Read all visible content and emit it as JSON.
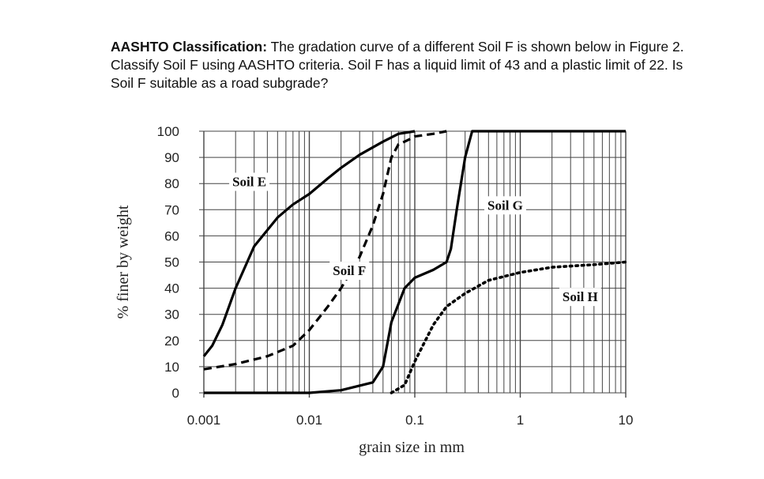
{
  "question": {
    "title": "AASHTO Classification:",
    "body": " The gradation curve of a different Soil F is shown below in Figure 2. Classify Soil F using AASHTO criteria. Soil F has a liquid limit of 43 and a plastic limit of 22. Is Soil F suitable as a road subgrade?"
  },
  "chart_data": {
    "type": "line",
    "x_scale": "log",
    "xlim": [
      0.001,
      10
    ],
    "ylim": [
      0,
      100
    ],
    "xlabel": "grain size in mm",
    "ylabel": "% finer by weight",
    "x_ticks": [
      0.001,
      0.01,
      0.1,
      1,
      10
    ],
    "x_tick_labels": [
      "0.001",
      "0.01",
      "0.1",
      "1",
      "10"
    ],
    "y_ticks": [
      0,
      10,
      20,
      30,
      40,
      50,
      60,
      70,
      80,
      90,
      100
    ],
    "y_tick_labels": [
      "0",
      "10",
      "20",
      "30",
      "40",
      "50",
      "60",
      "70",
      "80",
      "90",
      "100"
    ],
    "grid": true,
    "series": [
      {
        "name": "Soil E",
        "style": "solid",
        "x": [
          0.001,
          0.0012,
          0.0015,
          0.002,
          0.003,
          0.005,
          0.007,
          0.01,
          0.015,
          0.02,
          0.03,
          0.05,
          0.07,
          0.1
        ],
        "y": [
          14,
          18,
          26,
          40,
          56,
          67,
          72,
          76,
          82,
          86,
          91,
          96,
          99,
          100
        ]
      },
      {
        "name": "Soil F",
        "style": "dashed",
        "x": [
          0.001,
          0.002,
          0.004,
          0.007,
          0.01,
          0.015,
          0.02,
          0.03,
          0.04,
          0.05,
          0.06,
          0.07,
          0.08,
          0.09,
          0.1,
          0.15,
          0.2
        ],
        "y": [
          9,
          11,
          14,
          18,
          24,
          33,
          40,
          52,
          64,
          76,
          90,
          95,
          96,
          97,
          98,
          99,
          100
        ]
      },
      {
        "name": "Soil G",
        "style": "solid",
        "x": [
          0.001,
          0.01,
          0.02,
          0.04,
          0.05,
          0.06,
          0.08,
          0.1,
          0.15,
          0.2,
          0.22,
          0.25,
          0.3,
          0.35,
          0.4,
          10
        ],
        "y": [
          0,
          0,
          1,
          4,
          10,
          27,
          40,
          44,
          47,
          50,
          55,
          70,
          90,
          100,
          100,
          100
        ]
      },
      {
        "name": "Soil H",
        "style": "dotted",
        "x": [
          0.06,
          0.08,
          0.1,
          0.15,
          0.2,
          0.3,
          0.5,
          1,
          2,
          5,
          10
        ],
        "y": [
          0,
          3,
          12,
          26,
          33,
          38,
          43,
          46,
          48,
          49,
          50
        ]
      }
    ],
    "annotations": [
      {
        "text": "Soil E",
        "x": 0.0027,
        "y": 79
      },
      {
        "text": "Soil F",
        "x": 0.024,
        "y": 45
      },
      {
        "text": "Soil G",
        "x": 0.72,
        "y": 70
      },
      {
        "text": "Soil H",
        "x": 3.7,
        "y": 35
      }
    ]
  }
}
